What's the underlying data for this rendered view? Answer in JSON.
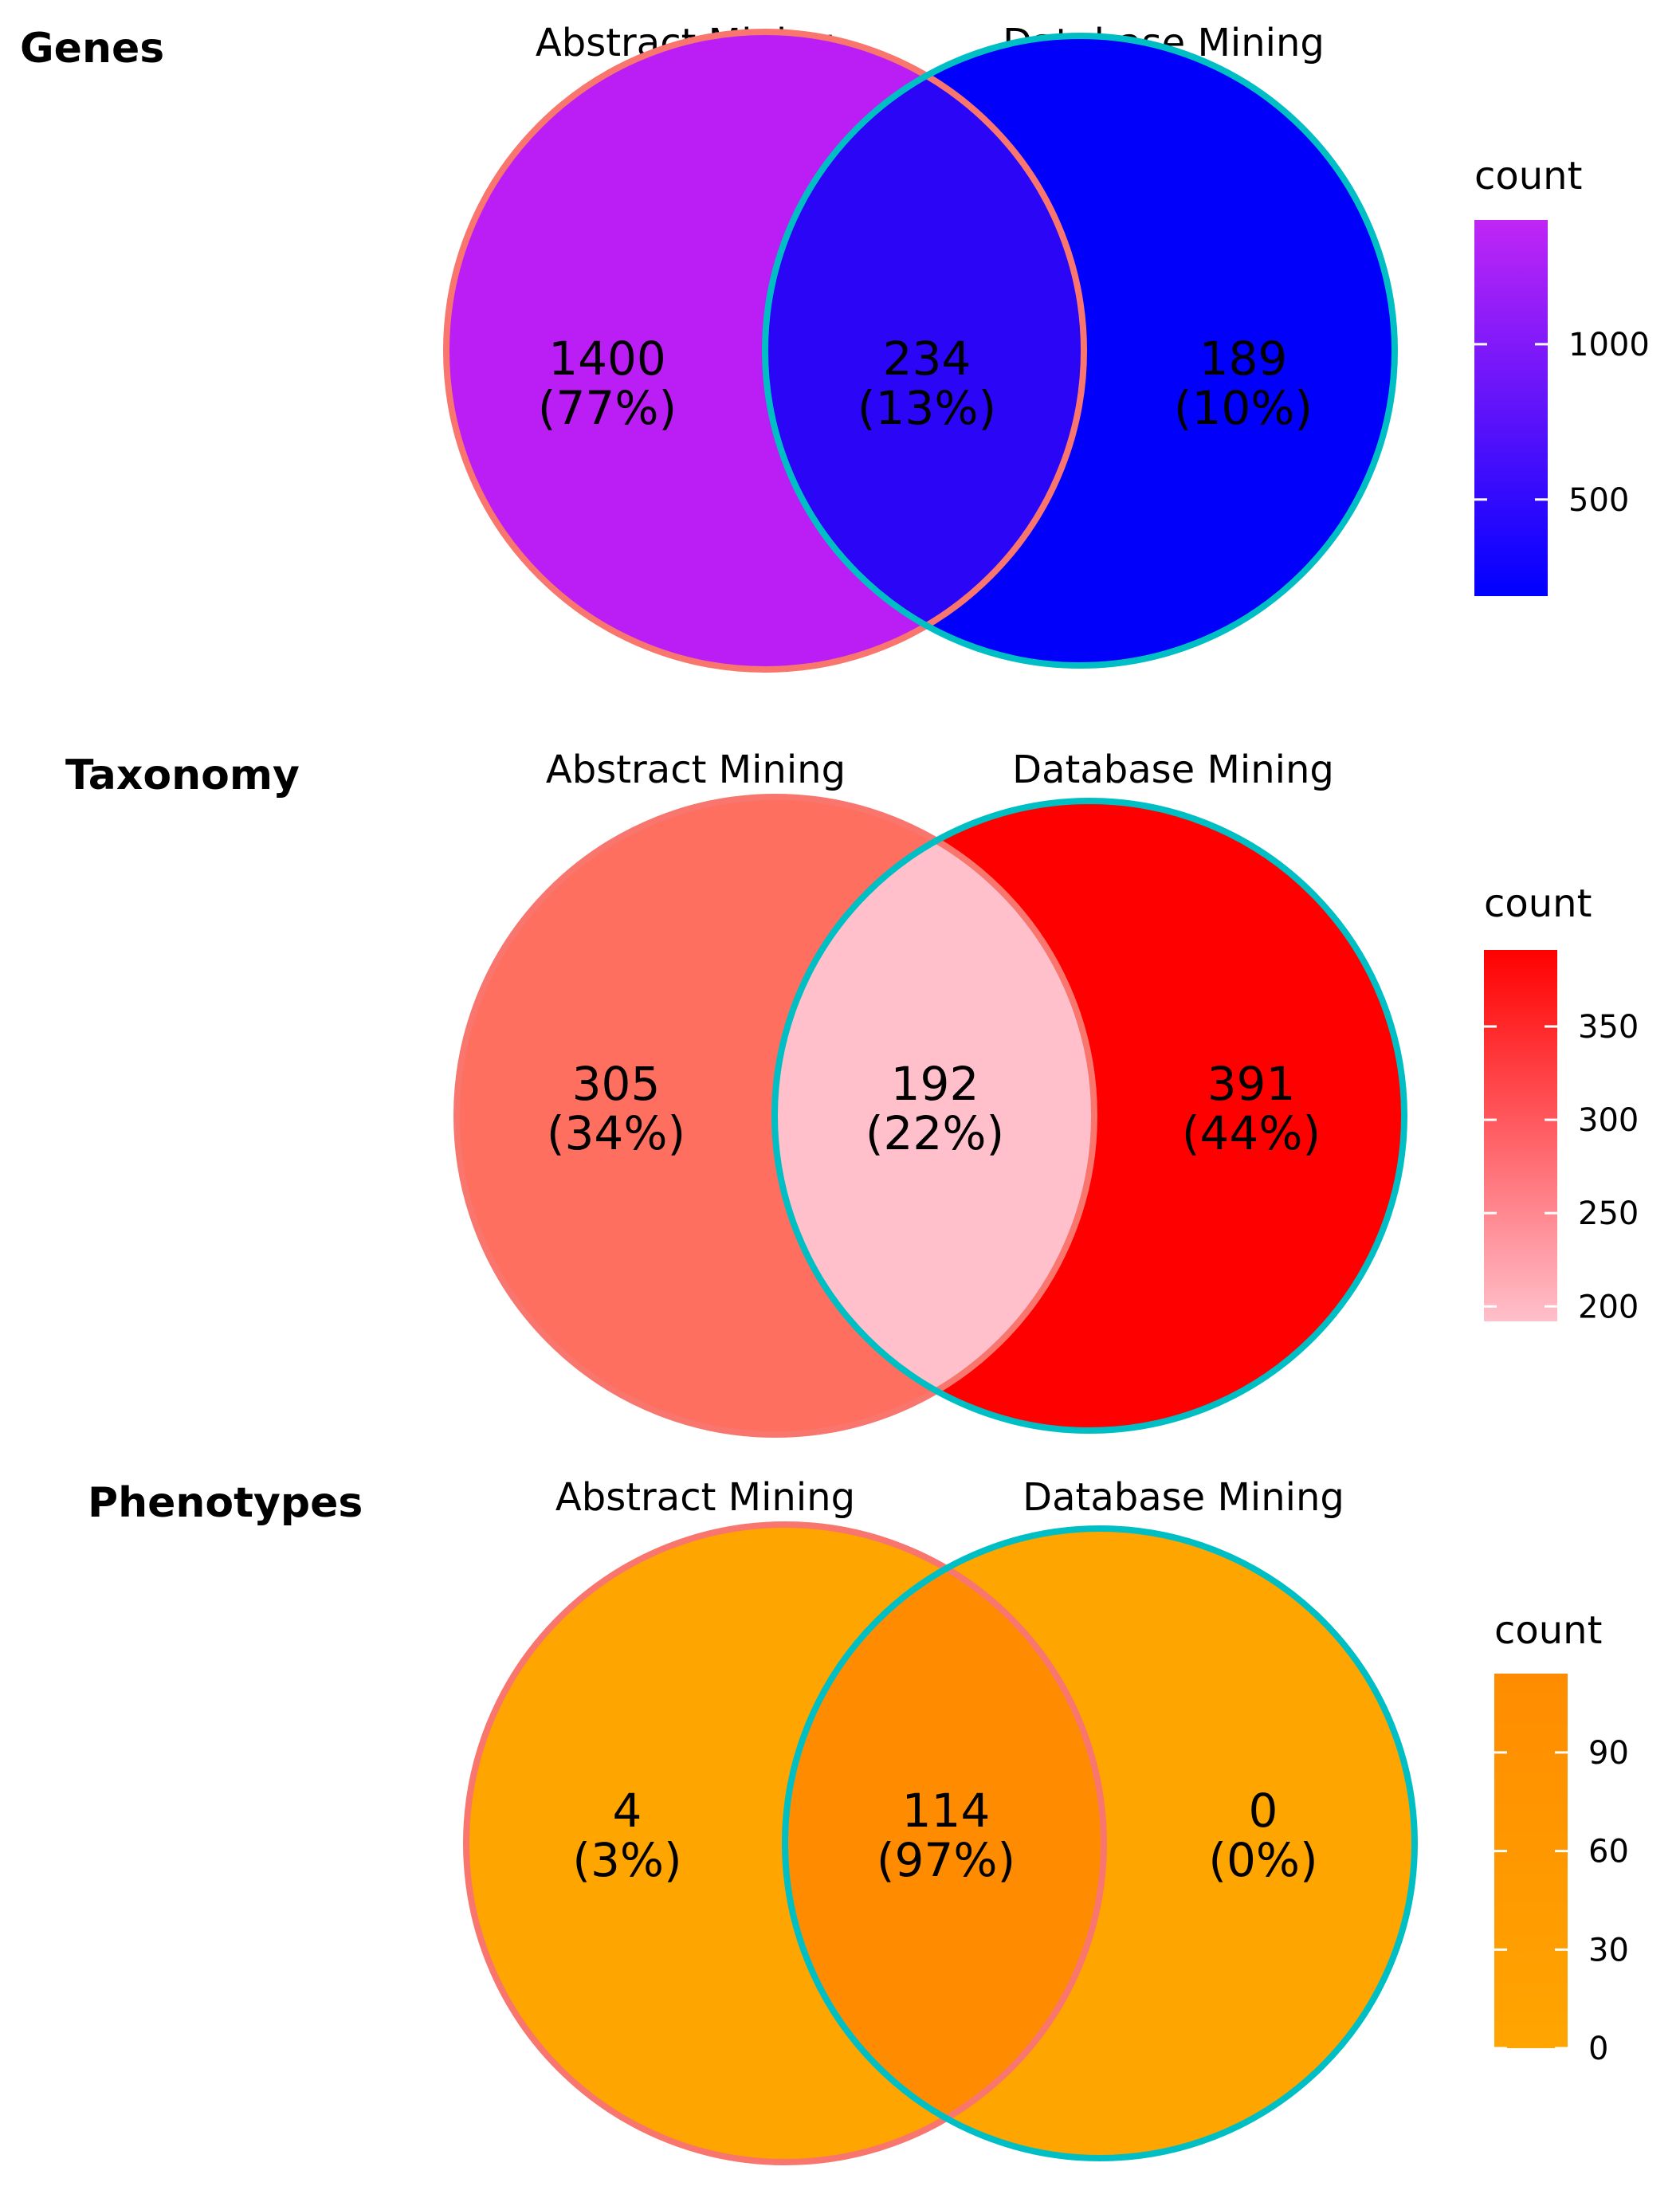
{
  "chart_data": [
    {
      "type": "venn",
      "title": "Genes",
      "sets": [
        "Abstract Mining",
        "Database Mining"
      ],
      "regions": [
        {
          "name": "Abstract Mining only",
          "count": 1400,
          "percent": "(77%)",
          "fill": "#bb1ef4"
        },
        {
          "name": "Both",
          "count": 234,
          "percent": "(13%)",
          "fill": "#2a05f6"
        },
        {
          "name": "Database Mining only",
          "count": 189,
          "percent": "(10%)",
          "fill": "#0000fb"
        }
      ],
      "set_outline_colors": [
        "#f8766d",
        "#00bfc4"
      ],
      "legend": {
        "title": "count",
        "min": 189,
        "max": 1400,
        "low_color": "#0000ff",
        "high_color": "#c026f6",
        "ticks": [
          {
            "value": 500,
            "label": "500"
          },
          {
            "value": 1000,
            "label": "1000"
          }
        ]
      }
    },
    {
      "type": "venn",
      "title": "Taxonomy",
      "sets": [
        "Abstract Mining",
        "Database Mining"
      ],
      "regions": [
        {
          "name": "Abstract Mining only",
          "count": 305,
          "percent": "(34%)",
          "fill": "#fe6f5f"
        },
        {
          "name": "Both",
          "count": 192,
          "percent": "(22%)",
          "fill": "#ffc0cb"
        },
        {
          "name": "Database Mining only",
          "count": 391,
          "percent": "(44%)",
          "fill": "#ff0000"
        }
      ],
      "set_outline_colors": [
        "#f8766d",
        "#00bfc4"
      ],
      "legend": {
        "title": "count",
        "min": 192,
        "max": 391,
        "low_color": "#ffc0cb",
        "high_color": "#ff0000",
        "ticks": [
          {
            "value": 200,
            "label": "200"
          },
          {
            "value": 250,
            "label": "250"
          },
          {
            "value": 300,
            "label": "300"
          },
          {
            "value": 350,
            "label": "350"
          }
        ]
      }
    },
    {
      "type": "venn",
      "title": "Phenotypes",
      "sets": [
        "Abstract Mining",
        "Database Mining"
      ],
      "regions": [
        {
          "name": "Abstract Mining only",
          "count": 4,
          "percent": "(3%)",
          "fill": "#ffa500"
        },
        {
          "name": "Both",
          "count": 114,
          "percent": "(97%)",
          "fill": "#ff8c00"
        },
        {
          "name": "Database Mining only",
          "count": 0,
          "percent": "(0%)",
          "fill": "#ffa500"
        }
      ],
      "set_outline_colors": [
        "#f8766d",
        "#00bfc4"
      ],
      "legend": {
        "title": "count",
        "min": 0,
        "max": 114,
        "low_color": "#ffa500",
        "high_color": "#ff8c00",
        "ticks": [
          {
            "value": 0,
            "label": "0"
          },
          {
            "value": 30,
            "label": "30"
          },
          {
            "value": 60,
            "label": "60"
          },
          {
            "value": 90,
            "label": "90"
          }
        ]
      }
    }
  ]
}
